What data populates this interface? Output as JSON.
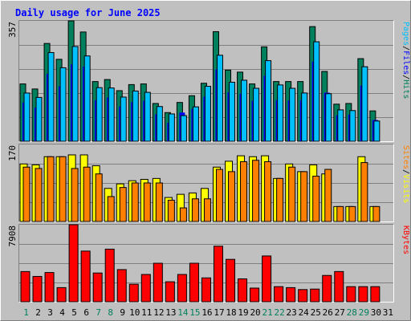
{
  "chart_data": {
    "type": "bar",
    "title": "Daily usage for June 2025",
    "categories": [
      "1",
      "2",
      "3",
      "4",
      "5",
      "6",
      "7",
      "8",
      "9",
      "10",
      "11",
      "12",
      "13",
      "14",
      "15",
      "16",
      "17",
      "18",
      "19",
      "20",
      "21",
      "22",
      "23",
      "24",
      "25",
      "26",
      "27",
      "28",
      "29",
      "30",
      "31"
    ],
    "weekend_days": [
      "1",
      "7",
      "8",
      "14",
      "15",
      "21",
      "22",
      "28",
      "29"
    ],
    "colors": {
      "background": "#c0c0c0",
      "plot": "#c0c0c0",
      "title": "#0000ff",
      "hits": "#00805c",
      "files": "#0000ff",
      "pages": "#00c0ff",
      "visits": "#ffff00",
      "sites": "#ff8000",
      "kbytes": "#ff0000",
      "weekday_label": "#000000",
      "weekend_label": "#00805c"
    },
    "panels": [
      {
        "id": "top",
        "axis_max_label": "357",
        "ylim": [
          0,
          357
        ],
        "legend": [
          "Pages",
          "/",
          "Files",
          "/",
          "Hits"
        ],
        "series": [
          {
            "name": "Hits",
            "values": [
              170,
              155,
              290,
              243,
              357,
              324,
              177,
              183,
              150,
              168,
              170,
              112,
              85,
              115,
              135,
              172,
              325,
              211,
              205,
              170,
              280,
              177,
              177,
              177,
              340,
              207,
              110,
              112,
              245,
              90,
              0
            ]
          },
          {
            "name": "Files",
            "values": [
              115,
              100,
              200,
              163,
              228,
              221,
              122,
              130,
              103,
              116,
              120,
              80,
              55,
              85,
              96,
              132,
              213,
              145,
              141,
              120,
              194,
              122,
              121,
              122,
              236,
              144,
              77,
              79,
              165,
              63,
              0
            ]
          },
          {
            "name": "Pages",
            "values": [
              143,
              130,
              263,
              218,
              281,
              253,
              159,
              158,
              131,
              149,
              145,
              103,
              81,
              76,
              102,
              163,
              255,
              175,
              181,
              157,
              239,
              167,
              157,
              143,
              295,
              141,
              93,
              91,
              221,
              60,
              0
            ]
          }
        ]
      },
      {
        "id": "middle",
        "axis_max_label": "170",
        "ylim": [
          0,
          170
        ],
        "legend": [
          "Sites",
          "/",
          "Visits"
        ],
        "series": [
          {
            "name": "Visits",
            "values": [
              127,
              125,
              143,
              143,
              147,
              147,
              123,
              73,
              83,
              90,
              93,
              95,
              53,
              60,
              63,
              73,
              120,
              133,
              145,
              143,
              145,
              95,
              127,
              110,
              125,
              105,
              33,
              33,
              143,
              33,
              0
            ]
          },
          {
            "name": "Sites",
            "values": [
              120,
              117,
              143,
              143,
              117,
              120,
              105,
              55,
              75,
              85,
              85,
              85,
              47,
              30,
              50,
              50,
              115,
              110,
              132,
              135,
              132,
              95,
              120,
              110,
              100,
              115,
              33,
              33,
              130,
              33,
              0
            ]
          }
        ]
      },
      {
        "id": "bottom",
        "axis_max_label": "7908",
        "ylim": [
          0,
          7908
        ],
        "legend": [
          "KBytes"
        ],
        "series": [
          {
            "name": "KBytes",
            "values": [
              3100,
              2600,
              3000,
              1450,
              7908,
              5200,
              2950,
              5400,
              3300,
              1800,
              2800,
              3950,
              2050,
              2800,
              3950,
              2450,
              5700,
              4350,
              2350,
              1400,
              4700,
              1550,
              1450,
              1250,
              1300,
              2700,
              3100,
              1550,
              1550,
              1550,
              0
            ]
          }
        ]
      }
    ]
  }
}
